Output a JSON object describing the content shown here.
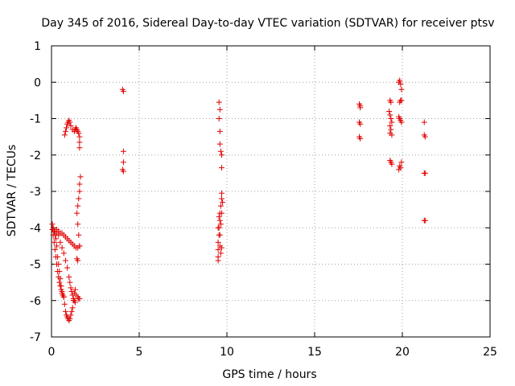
{
  "chart_data": {
    "type": "scatter",
    "title": "Day 345 of 2016, Sidereal Day-to-day VTEC variation (SDTVAR) for receiver ptsv",
    "xlabel": "GPS time / hours",
    "ylabel": "SDTVAR / TECUs",
    "xlim": [
      0,
      25
    ],
    "ylim": [
      -7,
      1
    ],
    "xticks": [
      0,
      5,
      10,
      15,
      20,
      25
    ],
    "yticks": [
      -7,
      -6,
      -5,
      -4,
      -3,
      -2,
      -1,
      0,
      1
    ],
    "grid": true,
    "marker": "plus",
    "color": "#e00000",
    "series": [
      {
        "name": "ptsv",
        "points": [
          [
            0.05,
            -3.9
          ],
          [
            0.1,
            -4.0
          ],
          [
            0.15,
            -4.1
          ],
          [
            0.2,
            -4.2
          ],
          [
            0.25,
            -4.3
          ],
          [
            0.3,
            -4.5
          ],
          [
            0.35,
            -4.8
          ],
          [
            0.4,
            -5.0
          ],
          [
            0.45,
            -5.2
          ],
          [
            0.5,
            -5.4
          ],
          [
            0.55,
            -5.6
          ],
          [
            0.6,
            -5.75
          ],
          [
            0.65,
            -5.85
          ],
          [
            0.7,
            -5.9
          ],
          [
            0.1,
            -4.2
          ],
          [
            0.15,
            -4.4
          ],
          [
            0.2,
            -4.6
          ],
          [
            0.25,
            -4.8
          ],
          [
            0.3,
            -5.0
          ],
          [
            0.35,
            -5.2
          ],
          [
            0.4,
            -5.35
          ],
          [
            0.45,
            -5.5
          ],
          [
            0.5,
            -5.6
          ],
          [
            0.55,
            -5.7
          ],
          [
            0.6,
            -5.8
          ],
          [
            0.65,
            -5.85
          ],
          [
            0.05,
            -4.05
          ],
          [
            0.2,
            -4.1
          ],
          [
            0.3,
            -4.15
          ],
          [
            0.4,
            -4.2
          ],
          [
            0.5,
            -4.4
          ],
          [
            0.6,
            -4.55
          ],
          [
            0.7,
            -4.7
          ],
          [
            0.8,
            -4.9
          ],
          [
            0.9,
            -5.1
          ],
          [
            1.0,
            -5.35
          ],
          [
            1.05,
            -5.5
          ],
          [
            1.1,
            -5.65
          ],
          [
            1.15,
            -5.75
          ],
          [
            1.2,
            -5.85
          ],
          [
            1.25,
            -5.95
          ],
          [
            1.3,
            -6.0
          ],
          [
            1.35,
            -6.05
          ],
          [
            0.7,
            -5.9
          ],
          [
            0.75,
            -6.1
          ],
          [
            0.8,
            -6.3
          ],
          [
            0.85,
            -6.4
          ],
          [
            0.9,
            -6.45
          ],
          [
            0.95,
            -6.5
          ],
          [
            1.0,
            -6.55
          ],
          [
            1.05,
            -6.5
          ],
          [
            1.1,
            -6.4
          ],
          [
            1.15,
            -6.3
          ],
          [
            1.2,
            -6.2
          ],
          [
            1.25,
            -6.0
          ],
          [
            1.3,
            -5.8
          ],
          [
            1.35,
            -5.7
          ],
          [
            0.2,
            -4.1
          ],
          [
            0.3,
            -4.05
          ],
          [
            0.4,
            -4.1
          ],
          [
            0.5,
            -4.15
          ],
          [
            0.6,
            -4.15
          ],
          [
            0.7,
            -4.2
          ],
          [
            0.8,
            -4.25
          ],
          [
            0.9,
            -4.3
          ],
          [
            1.0,
            -4.35
          ],
          [
            1.1,
            -4.4
          ],
          [
            1.2,
            -4.45
          ],
          [
            1.3,
            -4.5
          ],
          [
            1.4,
            -4.55
          ],
          [
            1.5,
            -4.55
          ],
          [
            1.6,
            -4.5
          ],
          [
            1.4,
            -5.85
          ],
          [
            1.5,
            -5.9
          ],
          [
            1.55,
            -5.95
          ],
          [
            1.6,
            -5.95
          ],
          [
            1.5,
            -4.9
          ],
          [
            1.45,
            -4.85
          ],
          [
            1.6,
            -4.5
          ],
          [
            1.55,
            -4.2
          ],
          [
            1.5,
            -3.9
          ],
          [
            1.45,
            -3.6
          ],
          [
            1.5,
            -3.4
          ],
          [
            1.55,
            -3.2
          ],
          [
            1.6,
            -3.0
          ],
          [
            1.6,
            -2.8
          ],
          [
            1.65,
            -2.6
          ],
          [
            0.75,
            -1.45
          ],
          [
            0.8,
            -1.35
          ],
          [
            0.85,
            -1.25
          ],
          [
            0.9,
            -1.15
          ],
          [
            0.95,
            -1.1
          ],
          [
            1.0,
            -1.05
          ],
          [
            1.05,
            -1.1
          ],
          [
            1.1,
            -1.2
          ],
          [
            1.2,
            -1.3
          ],
          [
            1.3,
            -1.35
          ],
          [
            1.35,
            -1.3
          ],
          [
            1.4,
            -1.25
          ],
          [
            1.45,
            -1.3
          ],
          [
            1.5,
            -1.35
          ],
          [
            1.55,
            -1.4
          ],
          [
            1.6,
            -1.5
          ],
          [
            1.6,
            -1.65
          ],
          [
            1.6,
            -1.8
          ],
          [
            4.05,
            -0.2
          ],
          [
            4.1,
            -0.25
          ],
          [
            4.1,
            -1.9
          ],
          [
            4.1,
            -2.2
          ],
          [
            4.05,
            -2.4
          ],
          [
            4.1,
            -2.45
          ],
          [
            9.55,
            -0.55
          ],
          [
            9.6,
            -0.75
          ],
          [
            9.55,
            -1.0
          ],
          [
            9.6,
            -1.35
          ],
          [
            9.6,
            -1.7
          ],
          [
            9.65,
            -1.9
          ],
          [
            9.7,
            -2.0
          ],
          [
            9.7,
            -2.35
          ],
          [
            9.5,
            -4.9
          ],
          [
            9.5,
            -4.8
          ],
          [
            9.5,
            -4.6
          ],
          [
            9.5,
            -4.4
          ],
          [
            9.55,
            -4.2
          ],
          [
            9.55,
            -4.0
          ],
          [
            9.6,
            -3.8
          ],
          [
            9.6,
            -3.6
          ],
          [
            9.65,
            -3.4
          ],
          [
            9.7,
            -3.2
          ],
          [
            9.7,
            -3.05
          ],
          [
            9.75,
            -3.3
          ],
          [
            9.7,
            -3.6
          ],
          [
            9.65,
            -3.9
          ],
          [
            9.6,
            -4.2
          ],
          [
            9.6,
            -4.5
          ],
          [
            9.65,
            -4.7
          ],
          [
            9.7,
            -4.55
          ],
          [
            9.55,
            -3.7
          ],
          [
            9.5,
            -4.0
          ],
          [
            17.55,
            -0.6
          ],
          [
            17.6,
            -0.65
          ],
          [
            17.6,
            -0.7
          ],
          [
            17.55,
            -1.1
          ],
          [
            17.6,
            -1.15
          ],
          [
            17.55,
            -1.5
          ],
          [
            17.6,
            -1.55
          ],
          [
            19.3,
            -0.5
          ],
          [
            19.35,
            -0.55
          ],
          [
            19.25,
            -0.8
          ],
          [
            19.3,
            -0.9
          ],
          [
            19.35,
            -1.0
          ],
          [
            19.4,
            -1.1
          ],
          [
            19.3,
            -1.2
          ],
          [
            19.35,
            -1.3
          ],
          [
            19.3,
            -1.4
          ],
          [
            19.4,
            -1.45
          ],
          [
            19.3,
            -2.15
          ],
          [
            19.35,
            -2.2
          ],
          [
            19.4,
            -2.25
          ],
          [
            19.8,
            0.0
          ],
          [
            19.85,
            0.05
          ],
          [
            19.9,
            -0.05
          ],
          [
            19.95,
            -0.2
          ],
          [
            19.9,
            -0.5
          ],
          [
            19.85,
            -0.55
          ],
          [
            19.95,
            -0.5
          ],
          [
            19.8,
            -0.95
          ],
          [
            19.85,
            -1.0
          ],
          [
            19.9,
            -1.05
          ],
          [
            19.95,
            -1.1
          ],
          [
            19.85,
            -2.3
          ],
          [
            19.9,
            -2.35
          ],
          [
            19.8,
            -2.4
          ],
          [
            19.95,
            -2.2
          ],
          [
            21.25,
            -1.1
          ],
          [
            21.25,
            -1.45
          ],
          [
            21.3,
            -1.5
          ],
          [
            21.25,
            -2.5
          ],
          [
            21.3,
            -2.5
          ],
          [
            21.25,
            -3.8
          ],
          [
            21.3,
            -3.8
          ]
        ]
      }
    ]
  }
}
